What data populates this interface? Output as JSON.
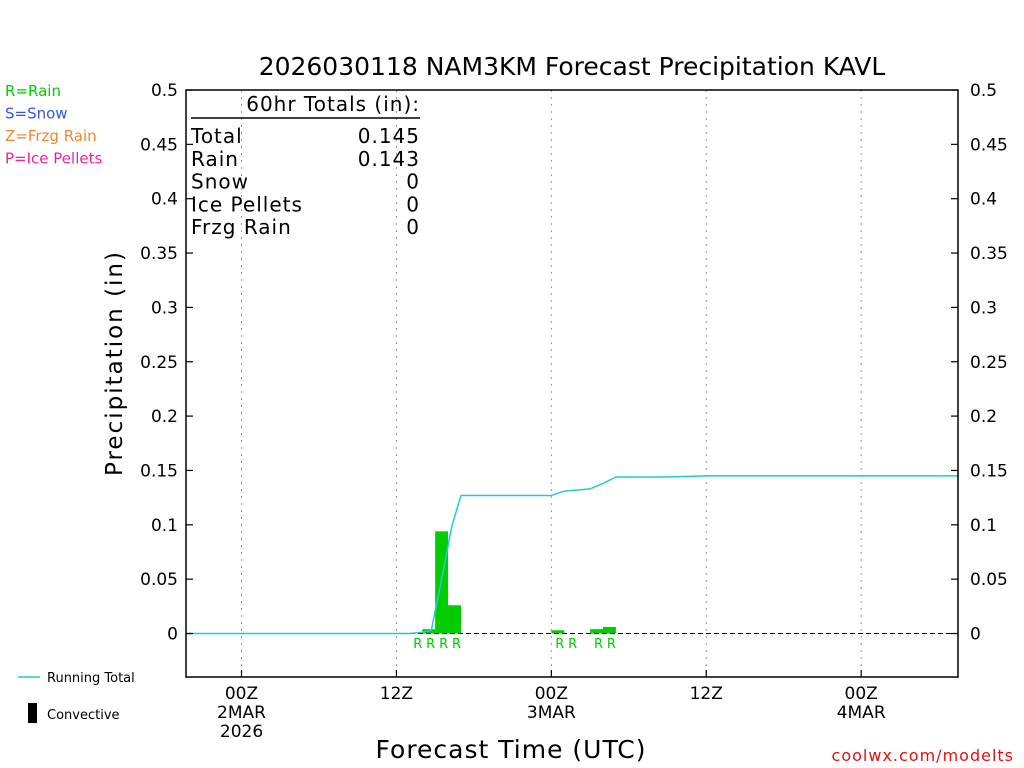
{
  "colors": {
    "rain": "#00cc00",
    "snow": "#3355ee",
    "frzg_rain": "#ee8833",
    "ice_pellets": "#ee2299",
    "running_total": "#22cccc",
    "credit": "#dd1111"
  },
  "type_legend": [
    {
      "text": "R=Rain",
      "color": "#00cc00"
    },
    {
      "text": "S=Snow",
      "color": "#3355ee"
    },
    {
      "text": "Z=Frzg Rain",
      "color": "#ee8833"
    },
    {
      "text": "P=Ice Pellets",
      "color": "#ee2299"
    }
  ],
  "bottom_legend": {
    "running_total": "Running Total",
    "convective": "Convective"
  },
  "totals": {
    "heading": "60hr Totals (in):",
    "rows": [
      {
        "label": "Total",
        "value": "0.145"
      },
      {
        "label": "Rain",
        "value": "0.143"
      },
      {
        "label": "Snow",
        "value": "0"
      },
      {
        "label": "Ice Pellets",
        "value": "0"
      },
      {
        "label": "Frzg Rain",
        "value": "0"
      }
    ]
  },
  "credit": "coolwx.com/modelts",
  "chart_data": {
    "type": "bar",
    "title": "2026030118 NAM3KM Forecast Precipitation KAVL",
    "xlabel": "Forecast Time (UTC)",
    "ylabel": "Precipitation (in)",
    "ylim": [
      -0.04,
      0.5
    ],
    "xlim_hours": [
      -4.3,
      55.5
    ],
    "yticks": [
      "0",
      "0.05",
      "0.1",
      "0.15",
      "0.2",
      "0.25",
      "0.3",
      "0.35",
      "0.4",
      "0.45",
      "0.5"
    ],
    "xticks": [
      {
        "hour": 0,
        "lines": [
          "00Z",
          "2MAR",
          "2026"
        ]
      },
      {
        "hour": 12,
        "lines": [
          "12Z"
        ]
      },
      {
        "hour": 24,
        "lines": [
          "00Z",
          "3MAR"
        ]
      },
      {
        "hour": 36,
        "lines": [
          "12Z"
        ]
      },
      {
        "hour": 48,
        "lines": [
          "00Z",
          "4MAR"
        ]
      }
    ],
    "grid": "vertical dotted",
    "bars": [
      {
        "hour": 15,
        "value": 0.004,
        "type": "R"
      },
      {
        "hour": 16,
        "value": 0.094,
        "type": "R"
      },
      {
        "hour": 17,
        "value": 0.026,
        "type": "R"
      },
      {
        "hour": 25,
        "value": 0.003,
        "type": "R"
      },
      {
        "hour": 28,
        "value": 0.004,
        "type": "R"
      },
      {
        "hour": 29,
        "value": 0.006,
        "type": "R"
      }
    ],
    "type_labels": [
      {
        "hour": 14,
        "text": "R"
      },
      {
        "hour": 15,
        "text": "R"
      },
      {
        "hour": 16,
        "text": "R"
      },
      {
        "hour": 17,
        "text": "R"
      },
      {
        "hour": 25,
        "text": "R"
      },
      {
        "hour": 26,
        "text": "R"
      },
      {
        "hour": 28,
        "text": "R"
      },
      {
        "hour": 29,
        "text": "R"
      }
    ],
    "running_total": {
      "name": "Running Total",
      "x_hours": [
        -5,
        13,
        14,
        14.7,
        15.5,
        16.3,
        17,
        18,
        24,
        25,
        27,
        28,
        29,
        33,
        36,
        55.5
      ],
      "y": [
        0,
        0,
        0.001,
        0.003,
        0.05,
        0.099,
        0.127,
        0.127,
        0.127,
        0.131,
        0.133,
        0.138,
        0.144,
        0.144,
        0.145,
        0.145
      ]
    }
  }
}
